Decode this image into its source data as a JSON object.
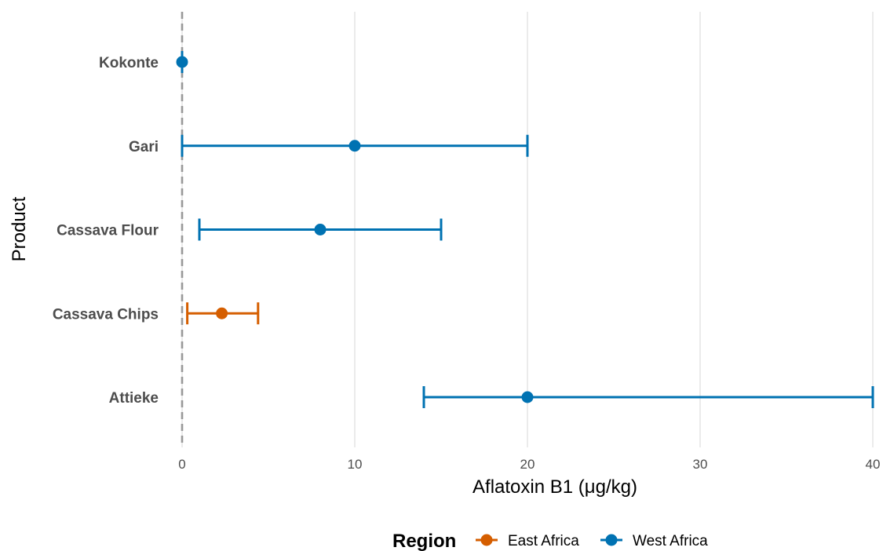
{
  "chart_data": {
    "type": "errorbar",
    "xlabel": "Aflatoxin B1 (μg/kg)",
    "ylabel": "Product",
    "xlim": [
      0,
      40
    ],
    "x_ticks": [
      0,
      10,
      20,
      30,
      40
    ],
    "reference_line": {
      "x": 0,
      "style": "dashed",
      "color": "#999999"
    },
    "grid": "vertical-major",
    "legend": {
      "title": "Region",
      "placement": "bottom"
    },
    "series": [
      {
        "name": "East Africa",
        "color": "#D55E00"
      },
      {
        "name": "West Africa",
        "color": "#0072B2"
      }
    ],
    "categories": [
      "Kokonte",
      "Gari",
      "Cassava Flour",
      "Cassava Chips",
      "Attieke"
    ],
    "points": [
      {
        "product": "Kokonte",
        "region": "West Africa",
        "estimate": 0,
        "lower": 0,
        "upper": 0
      },
      {
        "product": "Gari",
        "region": "West Africa",
        "estimate": 10,
        "lower": 0,
        "upper": 20
      },
      {
        "product": "Cassava Flour",
        "region": "West Africa",
        "estimate": 8,
        "lower": 1,
        "upper": 15
      },
      {
        "product": "Cassava Chips",
        "region": "East Africa",
        "estimate": 2.3,
        "lower": 0.3,
        "upper": 4.4
      },
      {
        "product": "Attieke",
        "region": "West Africa",
        "estimate": 20,
        "lower": 14,
        "upper": 40
      }
    ]
  }
}
